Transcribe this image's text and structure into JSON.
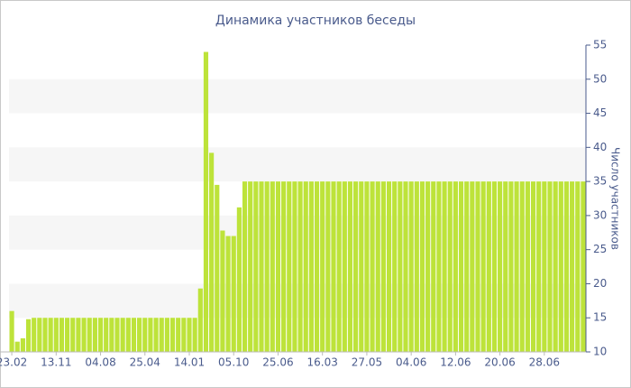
{
  "chart_data": {
    "type": "bar",
    "title": "Динамика участников беседы",
    "y_label": "Число участников",
    "categories": [
      "23.02",
      null,
      null,
      null,
      null,
      null,
      null,
      null,
      "13.11",
      null,
      null,
      null,
      null,
      null,
      null,
      null,
      "04.08",
      null,
      null,
      null,
      null,
      null,
      null,
      null,
      "25.04",
      null,
      null,
      null,
      null,
      null,
      null,
      null,
      "14.01",
      null,
      null,
      null,
      null,
      null,
      null,
      null,
      "05.10",
      null,
      null,
      null,
      null,
      null,
      null,
      null,
      "25.06",
      null,
      null,
      null,
      null,
      null,
      null,
      null,
      "16.03",
      null,
      null,
      null,
      null,
      null,
      null,
      null,
      "27.05",
      null,
      null,
      null,
      null,
      null,
      null,
      null,
      "04.06",
      null,
      null,
      null,
      null,
      null,
      null,
      null,
      "12.06",
      null,
      null,
      null,
      null,
      null,
      null,
      null,
      "20.06",
      null,
      null,
      null,
      null,
      null,
      null,
      null,
      "28.06",
      null,
      null,
      null,
      null,
      null,
      null,
      null
    ],
    "values": [
      16,
      11.5,
      12,
      14.8,
      15,
      15,
      15,
      15,
      15,
      15,
      15,
      15,
      15,
      15,
      15,
      15,
      15,
      15,
      15,
      15,
      15,
      15,
      15,
      15,
      15,
      15,
      15,
      15,
      15,
      15,
      15,
      15,
      15,
      15,
      19.3,
      54,
      39.2,
      34.5,
      27.8,
      27,
      27,
      31.2,
      35,
      35,
      35,
      35,
      35,
      35,
      35,
      35,
      35,
      35,
      35,
      35,
      35,
      35,
      35,
      35,
      35,
      35,
      35,
      35,
      35,
      35,
      35,
      35,
      35,
      35,
      35,
      35,
      35,
      35,
      35,
      35,
      35,
      35,
      35,
      35,
      35,
      35,
      35,
      35,
      35,
      35,
      35,
      35,
      35,
      35,
      35,
      35,
      35,
      35,
      35,
      35,
      35,
      35,
      35,
      35,
      35,
      35,
      35,
      35,
      35,
      35
    ],
    "color": "#bde33a",
    "band_color": "#f6f6f6",
    "grid": "bands",
    "y_axis_side": "right",
    "ylim": [
      10,
      55
    ],
    "yticks": [
      10,
      15,
      20,
      25,
      30,
      35,
      40,
      45,
      50,
      55
    ]
  }
}
